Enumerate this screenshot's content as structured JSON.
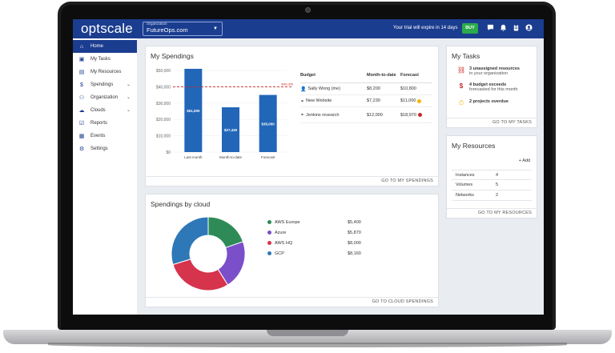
{
  "app": {
    "logo": "optscale"
  },
  "header": {
    "org_label": "Organization",
    "org_value": "FutureOps.com",
    "trial_text": "Your trial will expire in 14 days",
    "buy_label": "BUY"
  },
  "sidebar": {
    "items": [
      {
        "label": "Home",
        "icon": "home-icon"
      },
      {
        "label": "My Tasks",
        "icon": "tasks-icon"
      },
      {
        "label": "My Resources",
        "icon": "resources-icon"
      },
      {
        "label": "Spendings",
        "icon": "dollar-icon"
      },
      {
        "label": "Organization",
        "icon": "organization-icon"
      },
      {
        "label": "Clouds",
        "icon": "cloud-icon"
      },
      {
        "label": "Reports",
        "icon": "reports-icon"
      },
      {
        "label": "Events",
        "icon": "events-icon"
      },
      {
        "label": "Settings",
        "icon": "settings-icon"
      }
    ]
  },
  "spendings": {
    "title": "My Spendings",
    "footer_link": "GO TO MY SPENDINGS",
    "limit_label": "$40,000",
    "table": {
      "headers": [
        "Budget",
        "Month-to-date",
        "Forecast"
      ],
      "rows": [
        {
          "name": "Sally Wong (me)",
          "mtd": "$8,200",
          "forecast": "$10,800",
          "status": ""
        },
        {
          "name": "New Website",
          "mtd": "$7,230",
          "forecast": "$11,000",
          "status": "#f2b705"
        },
        {
          "name": "Jenkins research",
          "mtd": "$12,000",
          "forecast": "$18,970",
          "status": "#c62828"
        }
      ]
    }
  },
  "chart_data": [
    {
      "type": "bar",
      "categories": [
        "Last month",
        "Month-to-date",
        "Forecast"
      ],
      "values": [
        51000,
        27430,
        35000
      ],
      "data_labels": [
        "$51,000",
        "$27,430",
        "$35,000"
      ],
      "y_ticks": [
        "$0",
        "$10,000",
        "$20,000",
        "$30,000",
        "$40,000",
        "$50,000"
      ],
      "ylim": [
        0,
        50000
      ],
      "limit_line": 40000,
      "bar_color": "#2266b8",
      "limit_color": "#c62828"
    },
    {
      "type": "pie",
      "categories": [
        "AWS Europe",
        "Azure",
        "AWS HQ",
        "GCP"
      ],
      "values": [
        5400,
        5870,
        8000,
        8160
      ],
      "labels": [
        "$5,400",
        "$5,870",
        "$8,000",
        "$8,160"
      ],
      "colors": [
        "#2e8b57",
        "#7b4fc9",
        "#d6334c",
        "#2e78b7"
      ]
    }
  ],
  "cloud": {
    "title": "Spendings by cloud",
    "footer_link": "GO TO CLOUD SPENDINGS"
  },
  "tasks": {
    "title": "My Tasks",
    "footer_link": "GO TO MY TASKS",
    "items": [
      {
        "main": "3 unassigned resources",
        "sub": "in your organization",
        "icon": "unlink-icon",
        "color": "#c62828"
      },
      {
        "main": "4 budget exceeds",
        "sub": "forecasted for this month",
        "icon": "dollar-icon",
        "color": "#c62828"
      },
      {
        "main": "2 projects overdue",
        "sub": "",
        "icon": "clock-icon",
        "color": "#f2b705"
      }
    ]
  },
  "resources": {
    "title": "My Resources",
    "add_label": "+ Add",
    "footer_link": "GO TO MY RESOURCES",
    "rows": [
      {
        "name": "Instances",
        "count": "4"
      },
      {
        "name": "Volumes",
        "count": "5"
      },
      {
        "name": "Networks",
        "count": "2"
      }
    ]
  }
}
